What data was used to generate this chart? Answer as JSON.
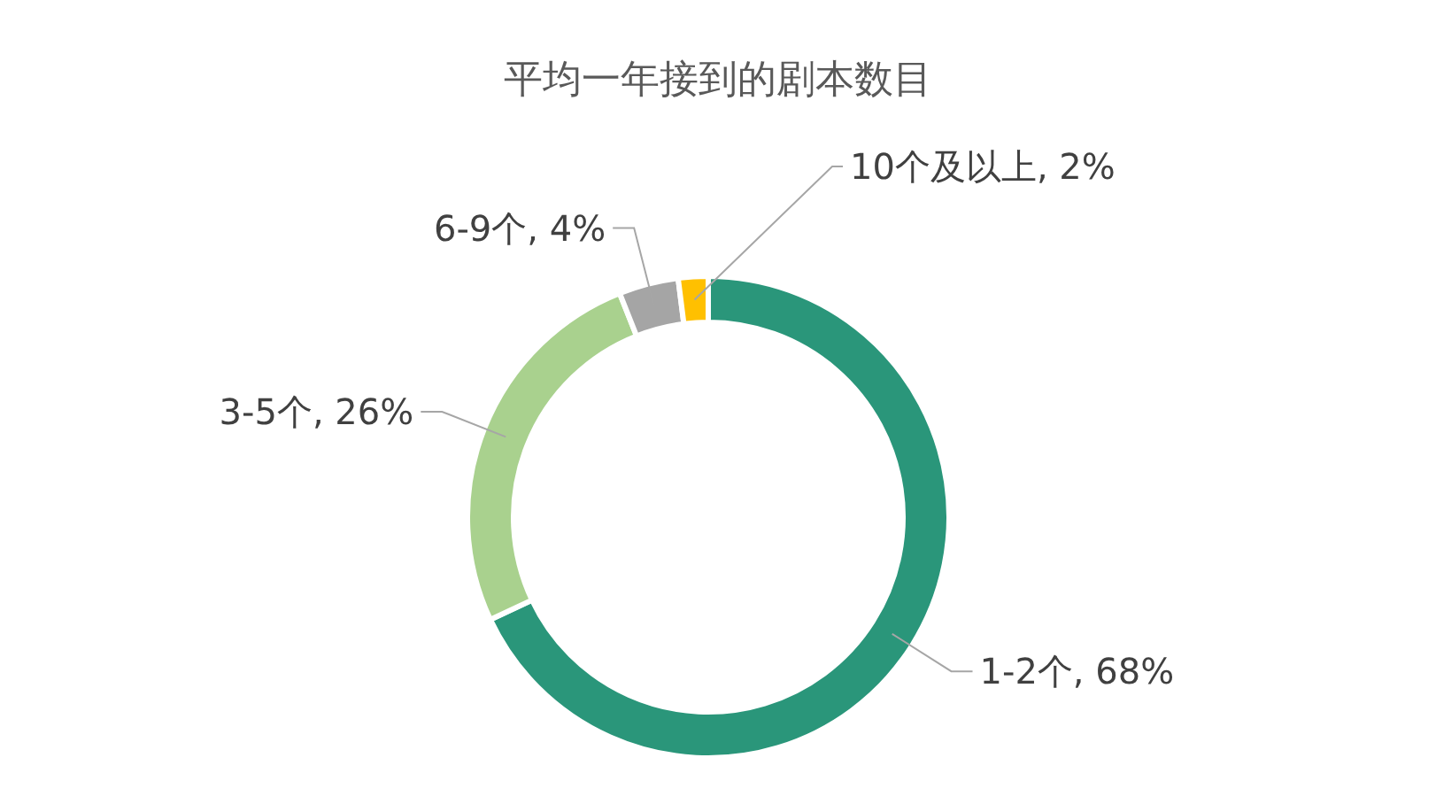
{
  "chart_data": {
    "type": "donut",
    "title": "平均一年接到的剧本数目",
    "categories": [
      "1-2个",
      "3-5个",
      "6-9个",
      "10个及以上"
    ],
    "values": [
      68,
      26,
      4,
      2
    ],
    "value_labels": [
      "68%",
      "26%",
      "4%",
      "2%"
    ],
    "colors": [
      "#2a967a",
      "#a9d18e",
      "#a5a5a5",
      "#ffc000"
    ]
  }
}
